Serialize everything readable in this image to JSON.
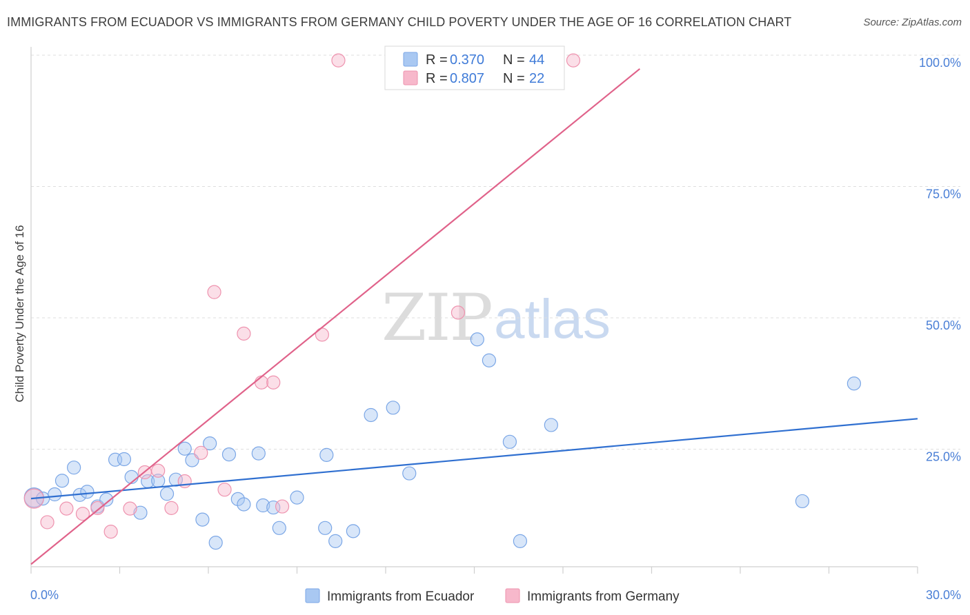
{
  "header": {
    "title": "IMMIGRANTS FROM ECUADOR VS IMMIGRANTS FROM GERMANY CHILD POVERTY UNDER THE AGE OF 16 CORRELATION CHART",
    "source": "Source: ZipAtlas.com"
  },
  "watermark": {
    "part1": "ZIP",
    "part2": "atlas"
  },
  "legend": {
    "r_label": "R =",
    "n_label": "N =",
    "rows": [
      {
        "r": "0.370",
        "n": "44",
        "color": "#a9c8f2"
      },
      {
        "r": "0.807",
        "n": "22",
        "color": "#f7b8cb"
      }
    ]
  },
  "bottom_legend": [
    {
      "label": "Immigrants from Ecuador",
      "color": "#a9c8f2"
    },
    {
      "label": "Immigrants from Germany",
      "color": "#f7b8cb"
    }
  ],
  "chart_data": {
    "type": "scatter",
    "title": "IMMIGRANTS FROM ECUADOR VS IMMIGRANTS FROM GERMANY CHILD POVERTY UNDER THE AGE OF 16 CORRELATION CHART",
    "xlabel": "",
    "ylabel": "Child Poverty Under the Age of 16",
    "xlim": [
      0,
      30
    ],
    "ylim": [
      0,
      102
    ],
    "x_tick_labels": {
      "left": "0.0%",
      "right": "30.0%"
    },
    "y_ticks": [
      {
        "value": 25,
        "label": "25.0%"
      },
      {
        "value": 50,
        "label": "50.0%"
      },
      {
        "value": 75,
        "label": "75.0%"
      },
      {
        "value": 100,
        "label": "100.0%"
      }
    ],
    "series": [
      {
        "name": "Immigrants from Ecuador",
        "color": "#a9c8f2",
        "stroke": "#7aa6e6",
        "line_color": "#2f6fd0",
        "trend": {
          "x0": 0,
          "y0": 15.6,
          "x1": 30,
          "y1": 30.8
        },
        "points": [
          [
            0.1,
            15.8
          ],
          [
            0.4,
            15.6
          ],
          [
            0.8,
            16.4
          ],
          [
            1.05,
            19.0
          ],
          [
            1.45,
            21.5
          ],
          [
            1.65,
            16.3
          ],
          [
            1.9,
            16.9
          ],
          [
            2.25,
            14.1
          ],
          [
            2.55,
            15.4
          ],
          [
            2.85,
            23.0
          ],
          [
            3.15,
            23.1
          ],
          [
            3.4,
            19.7
          ],
          [
            3.7,
            12.9
          ],
          [
            3.95,
            18.9
          ],
          [
            4.3,
            19.0
          ],
          [
            4.6,
            16.5
          ],
          [
            4.9,
            19.2
          ],
          [
            5.2,
            25.1
          ],
          [
            5.45,
            22.9
          ],
          [
            5.8,
            11.6
          ],
          [
            6.05,
            26.1
          ],
          [
            6.25,
            7.2
          ],
          [
            6.7,
            24.0
          ],
          [
            7.0,
            15.5
          ],
          [
            7.2,
            14.5
          ],
          [
            7.7,
            24.2
          ],
          [
            7.85,
            14.3
          ],
          [
            8.2,
            13.9
          ],
          [
            8.4,
            10.0
          ],
          [
            9.0,
            15.8
          ],
          [
            9.95,
            10.0
          ],
          [
            10.0,
            23.9
          ],
          [
            10.3,
            7.5
          ],
          [
            10.9,
            9.4
          ],
          [
            11.5,
            31.5
          ],
          [
            12.25,
            32.9
          ],
          [
            12.8,
            20.4
          ],
          [
            15.1,
            45.9
          ],
          [
            15.5,
            41.9
          ],
          [
            16.2,
            26.4
          ],
          [
            16.55,
            7.5
          ],
          [
            17.6,
            29.6
          ],
          [
            26.1,
            15.1
          ],
          [
            27.85,
            37.5
          ]
        ]
      },
      {
        "name": "Immigrants from Germany",
        "color": "#f7b8cb",
        "stroke": "#ee92ae",
        "line_color": "#e0628a",
        "trend": {
          "x0": 0,
          "y0": 3.1,
          "x1": 20.6,
          "y1": 97.4
        },
        "points": [
          [
            0.1,
            15.6
          ],
          [
            0.55,
            11.1
          ],
          [
            1.2,
            13.7
          ],
          [
            1.75,
            12.7
          ],
          [
            2.25,
            13.8
          ],
          [
            2.7,
            9.3
          ],
          [
            3.35,
            13.7
          ],
          [
            3.85,
            20.6
          ],
          [
            4.3,
            20.9
          ],
          [
            4.75,
            13.8
          ],
          [
            5.2,
            18.9
          ],
          [
            5.75,
            24.3
          ],
          [
            6.2,
            54.9
          ],
          [
            6.55,
            17.3
          ],
          [
            7.2,
            47.0
          ],
          [
            7.8,
            37.7
          ],
          [
            8.2,
            37.7
          ],
          [
            8.5,
            14.1
          ],
          [
            9.85,
            46.8
          ],
          [
            10.4,
            99.0
          ],
          [
            14.45,
            51.0
          ],
          [
            18.35,
            99.0
          ]
        ]
      }
    ]
  }
}
